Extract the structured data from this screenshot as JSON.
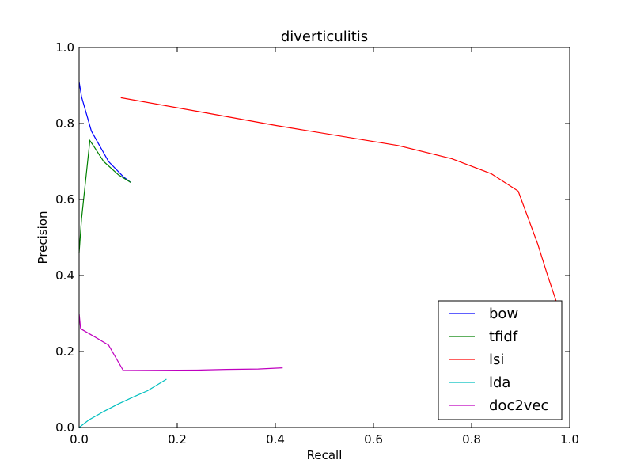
{
  "chart_data": {
    "type": "line",
    "title": "diverticulitis",
    "xlabel": "Recall",
    "ylabel": "Precision",
    "xlim": [
      0.0,
      1.0
    ],
    "ylim": [
      0.0,
      1.0
    ],
    "x_ticks": [
      "0.0",
      "0.2",
      "0.4",
      "0.6",
      "0.8",
      "1.0"
    ],
    "y_ticks": [
      "0.0",
      "0.2",
      "0.4",
      "0.6",
      "0.8",
      "1.0"
    ],
    "grid": false,
    "legend_position": "lower-right",
    "series": [
      {
        "name": "bow",
        "color": "#0000ff",
        "points": [
          [
            0.0,
            0.91
          ],
          [
            0.005,
            0.87
          ],
          [
            0.025,
            0.78
          ],
          [
            0.06,
            0.7
          ],
          [
            0.09,
            0.66
          ],
          [
            0.105,
            0.645
          ]
        ]
      },
      {
        "name": "tfidf",
        "color": "#008000",
        "points": [
          [
            0.0,
            0.46
          ],
          [
            0.005,
            0.55
          ],
          [
            0.022,
            0.755
          ],
          [
            0.03,
            0.74
          ],
          [
            0.05,
            0.7
          ],
          [
            0.08,
            0.665
          ],
          [
            0.105,
            0.645
          ]
        ]
      },
      {
        "name": "lsi",
        "color": "#ff0000",
        "points": [
          [
            0.085,
            0.868
          ],
          [
            0.25,
            0.83
          ],
          [
            0.4,
            0.795
          ],
          [
            0.65,
            0.742
          ],
          [
            0.76,
            0.707
          ],
          [
            0.84,
            0.668
          ],
          [
            0.895,
            0.622
          ],
          [
            0.935,
            0.482
          ],
          [
            0.955,
            0.4
          ],
          [
            0.973,
            0.33
          ]
        ]
      },
      {
        "name": "lda",
        "color": "#00bfbf",
        "points": [
          [
            0.0,
            0.0
          ],
          [
            0.02,
            0.02
          ],
          [
            0.05,
            0.042
          ],
          [
            0.08,
            0.062
          ],
          [
            0.11,
            0.08
          ],
          [
            0.14,
            0.097
          ],
          [
            0.178,
            0.127
          ]
        ]
      },
      {
        "name": "doc2vec",
        "color": "#bf00bf",
        "points": [
          [
            0.0,
            0.3
          ],
          [
            0.003,
            0.26
          ],
          [
            0.03,
            0.24
          ],
          [
            0.06,
            0.217
          ],
          [
            0.09,
            0.15
          ],
          [
            0.24,
            0.151
          ],
          [
            0.3,
            0.153
          ],
          [
            0.365,
            0.154
          ],
          [
            0.415,
            0.157
          ]
        ]
      }
    ]
  }
}
